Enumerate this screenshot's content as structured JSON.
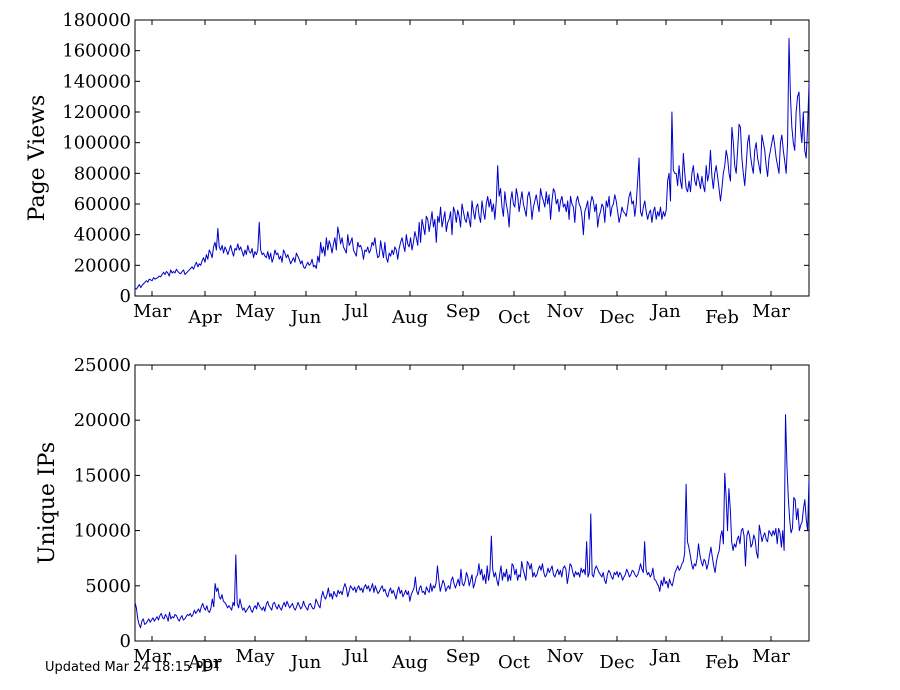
{
  "footer": {
    "updated_text": "Updated Mar 24 18:15 PDT"
  },
  "chart_data": [
    {
      "type": "line",
      "ylabel": "Page Views",
      "ylim": [
        0,
        180000
      ],
      "yticks": [
        0,
        20000,
        40000,
        60000,
        80000,
        100000,
        120000,
        140000,
        160000,
        180000
      ],
      "xticks": [
        "Mar",
        "Apr",
        "May",
        "Jun",
        "Jul",
        "Aug",
        "Sep",
        "Oct",
        "Nov",
        "Dec",
        "Jan",
        "Feb",
        "Mar"
      ],
      "line_color": "#0000cc",
      "series": [
        {
          "values": [
            5000,
            4500,
            6000,
            7500,
            5500,
            7000,
            8000,
            9000,
            10000,
            9000,
            11000,
            10500,
            10000,
            12000,
            11000,
            11500,
            12000,
            13000,
            12500,
            14000,
            15500,
            14000,
            16000,
            15000,
            13000,
            17000,
            15000,
            16000,
            15000,
            17500,
            16000,
            15000,
            14500,
            16000,
            17000,
            14000,
            15000,
            16000,
            17000,
            18000,
            19000,
            17500,
            20000,
            22000,
            19000,
            21000,
            20000,
            23000,
            25000,
            22000,
            27000,
            24000,
            30000,
            28000,
            25000,
            32000,
            35000,
            30000,
            44000,
            32000,
            30000,
            33000,
            28000,
            32000,
            30000,
            27000,
            30000,
            33000,
            29000,
            26000,
            31000,
            30000,
            34000,
            30000,
            32000,
            29000,
            26000,
            30000,
            27000,
            33000,
            29000,
            28000,
            31000,
            25000,
            29000,
            27000,
            30000,
            48000,
            30000,
            27000,
            28000,
            26000,
            25000,
            29000,
            24000,
            28000,
            22000,
            25000,
            30000,
            27000,
            28000,
            24000,
            26000,
            22000,
            30000,
            28000,
            25000,
            27000,
            24000,
            21000,
            23000,
            25000,
            22000,
            28000,
            26000,
            24000,
            21000,
            23000,
            19000,
            18000,
            20000,
            22000,
            20000,
            21000,
            24000,
            19000,
            20000,
            18000,
            26000,
            22000,
            35000,
            28000,
            32000,
            26000,
            38000,
            30000,
            36000,
            33000,
            28000,
            34000,
            38000,
            30000,
            45000,
            40000,
            34000,
            38000,
            32000,
            30000,
            28000,
            40000,
            33000,
            35000,
            38000,
            30000,
            28000,
            26000,
            35000,
            32000,
            33000,
            30000,
            24000,
            30000,
            29000,
            32000,
            28000,
            30000,
            35000,
            33000,
            38000,
            30000,
            25000,
            26000,
            36000,
            30000,
            25000,
            35000,
            25000,
            22000,
            28000,
            26000,
            30000,
            27000,
            32000,
            30000,
            24000,
            31000,
            35000,
            38000,
            33000,
            29000,
            40000,
            34000,
            32000,
            38000,
            30000,
            35000,
            42000,
            38000,
            33000,
            48000,
            35000,
            50000,
            45000,
            40000,
            52000,
            50000,
            42000,
            48000,
            55000,
            45000,
            50000,
            35000,
            52000,
            48000,
            58000,
            45000,
            50000,
            55000,
            42000,
            48000,
            50000,
            55000,
            40000,
            58000,
            55000,
            48000,
            56000,
            52000,
            45000,
            60000,
            55000,
            50000,
            48000,
            55000,
            50000,
            45000,
            62000,
            55000,
            50000,
            58000,
            60000,
            52000,
            48000,
            62000,
            55000,
            50000,
            60000,
            65000,
            58000,
            63000,
            55000,
            60000,
            50000,
            62000,
            85000,
            65000,
            70000,
            58000,
            52000,
            68000,
            60000,
            55000,
            45000,
            62000,
            68000,
            60000,
            58000,
            70000,
            65000,
            55000,
            62000,
            68000,
            60000,
            56000,
            52000,
            65000,
            68000,
            62000,
            50000,
            58000,
            62000,
            66000,
            60000,
            55000,
            70000,
            65000,
            62000,
            58000,
            68000,
            60000,
            66000,
            50000,
            62000,
            70000,
            68000,
            60000,
            63000,
            55000,
            62000,
            65000,
            58000,
            60000,
            55000,
            62000,
            50000,
            65000,
            60000,
            58000,
            48000,
            62000,
            65000,
            60000,
            58000,
            52000,
            40000,
            55000,
            58000,
            62000,
            50000,
            60000,
            65000,
            62000,
            55000,
            60000,
            45000,
            52000,
            55000,
            60000,
            58000,
            48000,
            62000,
            58000,
            65000,
            52000,
            58000,
            60000,
            66000,
            62000,
            55000,
            48000,
            52000,
            58000,
            55000,
            54000,
            52000,
            58000,
            65000,
            68000,
            60000,
            62000,
            52000,
            60000,
            75000,
            90000,
            55000,
            52000,
            58000,
            62000,
            55000,
            50000,
            54000,
            56000,
            48000,
            55000,
            58000,
            50000,
            55000,
            52000,
            58000,
            50000,
            55000,
            52000,
            56000,
            75000,
            80000,
            62000,
            120000,
            82000,
            80000,
            80000,
            72000,
            85000,
            75000,
            70000,
            93000,
            80000,
            70000,
            68000,
            75000,
            68000,
            80000,
            85000,
            75000,
            72000,
            80000,
            75000,
            70000,
            78000,
            72000,
            68000,
            85000,
            75000,
            80000,
            95000,
            78000,
            70000,
            80000,
            85000,
            78000,
            70000,
            62000,
            70000,
            80000,
            85000,
            95000,
            90000,
            80000,
            75000,
            110000,
            100000,
            85000,
            80000,
            95000,
            112000,
            110000,
            90000,
            80000,
            72000,
            85000,
            100000,
            105000,
            92000,
            85000,
            80000,
            95000,
            100000,
            90000,
            85000,
            80000,
            105000,
            100000,
            95000,
            85000,
            78000,
            90000,
            95000,
            100000,
            105000,
            98000,
            90000,
            85000,
            80000,
            100000,
            105000,
            95000,
            88000,
            80000,
            100000,
            168000,
            130000,
            110000,
            100000,
            95000,
            120000,
            130000,
            133000,
            110000,
            100000,
            120000,
            95000,
            90000,
            110000,
            138000
          ]
        }
      ]
    },
    {
      "type": "line",
      "ylabel": "Unique IPs",
      "ylim": [
        0,
        25000
      ],
      "yticks": [
        0,
        5000,
        10000,
        15000,
        20000,
        25000
      ],
      "xticks": [
        "Mar",
        "Apr",
        "May",
        "Jun",
        "Jul",
        "Aug",
        "Sep",
        "Oct",
        "Nov",
        "Dec",
        "Jan",
        "Feb",
        "Mar"
      ],
      "line_color": "#0000cc",
      "series": [
        {
          "values": [
            3500,
            3000,
            2000,
            1500,
            1200,
            1800,
            2000,
            1500,
            1600,
            1800,
            2000,
            1700,
            1900,
            2100,
            1800,
            2000,
            2200,
            1900,
            2300,
            2500,
            2100,
            2000,
            2400,
            2200,
            1800,
            2600,
            2000,
            2200,
            2100,
            2400,
            2300,
            2000,
            1800,
            2100,
            2300,
            1900,
            2000,
            2200,
            2400,
            2300,
            2500,
            2200,
            2400,
            2800,
            2500,
            2700,
            2900,
            2600,
            3100,
            3400,
            3000,
            2800,
            3200,
            2700,
            2600,
            3000,
            3800,
            3100,
            5200,
            4500,
            4800,
            4000,
            3800,
            4200,
            3600,
            3500,
            3300,
            3000,
            3200,
            3000,
            2800,
            3500,
            3200,
            7800,
            3400,
            3000,
            3800,
            3200,
            2800,
            3000,
            2600,
            2800,
            3000,
            3200,
            2800,
            2600,
            3000,
            3200,
            2900,
            3500,
            3200,
            3000,
            2800,
            3100,
            2700,
            3300,
            3600,
            3200,
            3000,
            2800,
            3400,
            3500,
            3100,
            2900,
            3300,
            3000,
            2800,
            3200,
            3500,
            3100,
            3600,
            3300,
            3000,
            3200,
            3400,
            3000,
            2800,
            3100,
            3500,
            3200,
            2900,
            3100,
            3600,
            3200,
            3000,
            2800,
            3300,
            3400,
            3100,
            2900,
            3000,
            3800,
            3500,
            3200,
            3000,
            4000,
            4500,
            4000,
            3800,
            4200,
            4800,
            4000,
            4300,
            3800,
            4500,
            4200,
            4000,
            4600,
            4300,
            4500,
            4200,
            4800,
            5200,
            4800,
            4000,
            4500,
            5000,
            4800,
            4600,
            4900,
            4400,
            4800,
            5000,
            4600,
            4800,
            4400,
            4900,
            5100,
            4700,
            5000,
            4500,
            4800,
            5200,
            4400,
            5000,
            4600,
            4300,
            4500,
            4800,
            5000,
            4500,
            4700,
            4200,
            4000,
            4500,
            4800,
            4300,
            4600,
            4200,
            3800,
            4500,
            4900,
            4300,
            4600,
            4000,
            4300,
            4600,
            4200,
            4500,
            3600,
            4200,
            4500,
            4800,
            5800,
            4500,
            4200,
            4800,
            5000,
            4400,
            4500,
            4200,
            4900,
            4600,
            4400,
            5200,
            4500,
            5000,
            4800,
            5300,
            6800,
            5500,
            4500,
            5000,
            5500,
            5200,
            4500,
            4800,
            5000,
            4700,
            5500,
            5800,
            5200,
            4800,
            5200,
            5600,
            5000,
            6500,
            5200,
            5000,
            5400,
            6200,
            5800,
            5000,
            5500,
            6000,
            4800,
            5200,
            5800,
            6000,
            7000,
            6000,
            6500,
            5500,
            6000,
            5200,
            6800,
            5500,
            6300,
            9500,
            6500,
            5800,
            6200,
            5500,
            5000,
            6000,
            6800,
            5500,
            6200,
            5800,
            6500,
            5400,
            6000,
            5500,
            7000,
            6800,
            6000,
            6500,
            5500,
            6000,
            5800,
            7200,
            6500,
            6000,
            5500,
            7200,
            7000,
            6500,
            7000,
            5800,
            6200,
            5800,
            6000,
            6500,
            6800,
            6400,
            7000,
            6200,
            5800,
            6000,
            6600,
            6200,
            6500,
            6800,
            6000,
            5800,
            6200,
            6500,
            6000,
            6400,
            5800,
            6600,
            6800,
            6500,
            5200,
            6000,
            7000,
            6800,
            6200,
            5800,
            6300,
            6000,
            6200,
            5800,
            6600,
            6200,
            6500,
            6000,
            9000,
            5800,
            6200,
            11500,
            6000,
            5800,
            6500,
            6800,
            6500,
            6200,
            6000,
            5800,
            6200,
            5500,
            5200,
            6000,
            6400,
            6200,
            5800,
            5600,
            6200,
            6000,
            6300,
            5800,
            6200,
            6000,
            5500,
            5800,
            6000,
            6500,
            6200,
            5800,
            6000,
            6400,
            6300,
            6000,
            5800,
            6000,
            6400,
            7000,
            6500,
            6200,
            9000,
            6500,
            6000,
            6200,
            5800,
            6000,
            6600,
            5600,
            5500,
            5200,
            5000,
            4500,
            5500,
            5000,
            5800,
            5200,
            5400,
            4800,
            5600,
            5200,
            5000,
            5600,
            6200,
            6500,
            6800,
            6400,
            6600,
            7000,
            7200,
            8000,
            14200,
            9000,
            8500,
            7800,
            7000,
            6500,
            7000,
            6800,
            7500,
            8800,
            7800,
            7200,
            6800,
            7400,
            7200,
            6500,
            7000,
            7800,
            8500,
            7600,
            6800,
            6200,
            7200,
            7800,
            8200,
            9500,
            10000,
            8800,
            15200,
            13000,
            10000,
            13800,
            12000,
            9000,
            8200,
            8800,
            8500,
            9200,
            9500,
            8800,
            10000,
            10200,
            9500,
            6800,
            9500,
            10000,
            9500,
            8500,
            8800,
            9600,
            9200,
            8000,
            7500,
            10500,
            9800,
            9000,
            9500,
            9800,
            9200,
            9000,
            10000,
            9800,
            9500,
            10000,
            9600,
            10200,
            8800,
            10200,
            9800,
            8500,
            10000,
            8200,
            20500,
            16000,
            13000,
            11000,
            9800,
            10200,
            13000,
            12800,
            11000,
            12000,
            10000,
            10500,
            10800,
            12000,
            12800,
            11000,
            10000,
            14700
          ]
        }
      ]
    }
  ]
}
